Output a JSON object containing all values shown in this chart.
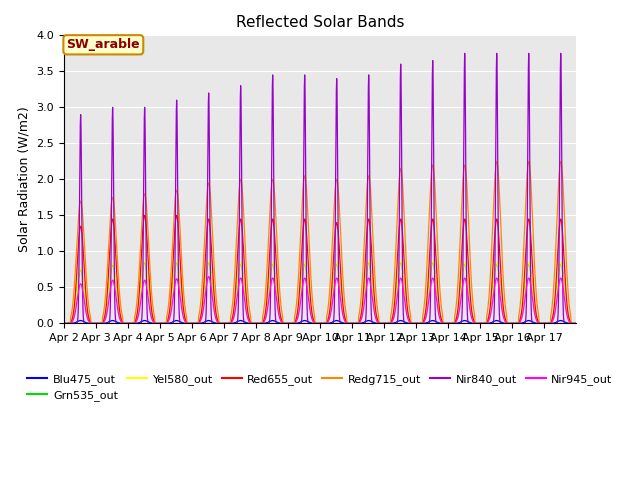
{
  "title": "Reflected Solar Bands",
  "ylabel": "Solar Radiation (W/m2)",
  "annotation": "SW_arable",
  "ylim": [
    0,
    4.0
  ],
  "yticks": [
    0.0,
    0.5,
    1.0,
    1.5,
    2.0,
    2.5,
    3.0,
    3.5,
    4.0
  ],
  "num_days": 16,
  "series_order": [
    "Blu475_out",
    "Grn535_out",
    "Yel580_out",
    "Red655_out",
    "Redg715_out",
    "Nir840_out",
    "Nir945_out"
  ],
  "colors": {
    "Blu475_out": "#0000ff",
    "Grn535_out": "#00dd00",
    "Yel580_out": "#ffff00",
    "Red655_out": "#ff0000",
    "Redg715_out": "#ff8800",
    "Nir840_out": "#9900cc",
    "Nir945_out": "#ff00ff"
  },
  "nir840_peaks": [
    2.9,
    3.0,
    3.0,
    3.1,
    3.2,
    3.3,
    3.45,
    3.45,
    3.4,
    3.45,
    3.6,
    3.65,
    3.75,
    3.75,
    3.75,
    3.75
  ],
  "redg715_peaks": [
    1.7,
    1.75,
    1.8,
    1.85,
    1.95,
    2.0,
    2.0,
    2.05,
    2.0,
    2.05,
    2.15,
    2.2,
    2.2,
    2.25,
    2.25,
    2.25
  ],
  "red655_peaks": [
    1.35,
    1.45,
    1.5,
    1.5,
    1.45,
    1.45,
    1.45,
    1.45,
    1.4,
    1.45,
    1.45,
    1.45,
    1.45,
    1.45,
    1.45,
    1.45
  ],
  "grn535_peaks": [
    0.75,
    0.82,
    0.85,
    0.85,
    0.85,
    0.83,
    0.83,
    0.83,
    0.83,
    0.85,
    0.85,
    0.85,
    0.83,
    0.83,
    0.83,
    0.83
  ],
  "yel580_peaks": [
    0.76,
    0.83,
    0.86,
    0.86,
    0.86,
    0.84,
    0.84,
    0.84,
    0.84,
    0.86,
    0.86,
    0.86,
    0.84,
    0.84,
    0.84,
    0.84
  ],
  "nir945_peaks": [
    0.55,
    0.6,
    0.6,
    0.62,
    0.65,
    0.63,
    0.63,
    0.63,
    0.63,
    0.63,
    0.63,
    0.63,
    0.63,
    0.63,
    0.63,
    0.63
  ],
  "blu475_peaks": [
    0.04,
    0.04,
    0.04,
    0.04,
    0.04,
    0.04,
    0.04,
    0.04,
    0.04,
    0.04,
    0.04,
    0.04,
    0.04,
    0.04,
    0.04,
    0.04
  ],
  "widths": {
    "Blu475_out": 5.0,
    "Grn535_out": 5.5,
    "Yel580_out": 5.5,
    "Red655_out": 5.0,
    "Redg715_out": 6.0,
    "Nir840_out": 2.2,
    "Nir945_out": 5.0
  },
  "background_color": "#e8e8e8",
  "legend_fontsize": 8,
  "title_fontsize": 11,
  "axis_fontsize": 9,
  "tick_fontsize": 8
}
